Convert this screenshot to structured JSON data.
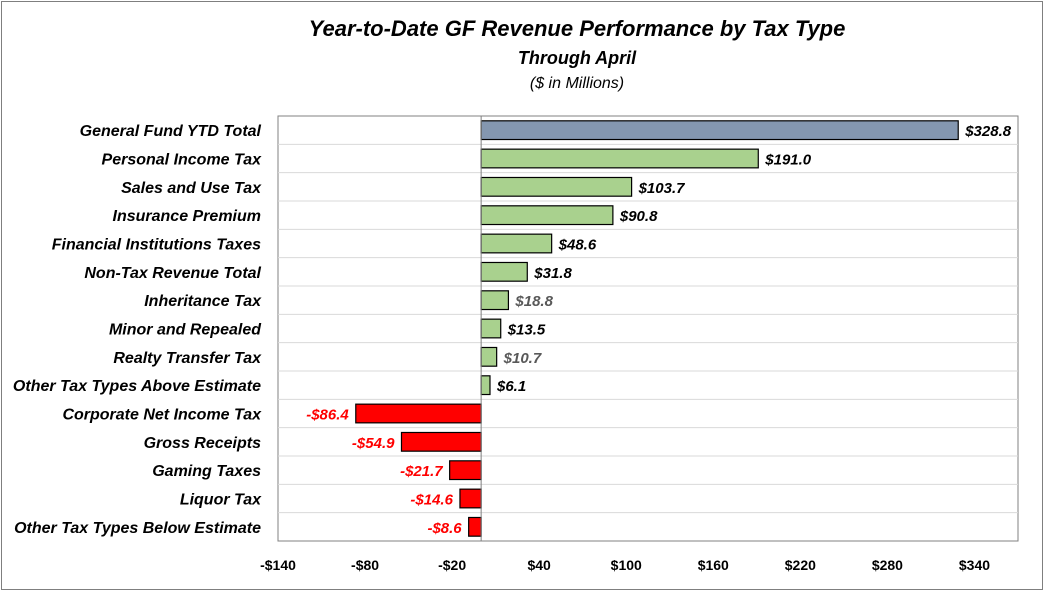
{
  "chart_data": {
    "type": "bar",
    "orientation": "horizontal",
    "title": "Year-to-Date GF Revenue Performance by Tax Type",
    "subtitle": "Through April",
    "units_note": "($ in Millions)",
    "categories": [
      "General Fund YTD Total",
      "Personal Income Tax",
      "Sales and Use Tax",
      "Insurance Premium",
      "Financial Institutions Taxes",
      "Non-Tax Revenue Total",
      "Inheritance Tax",
      "Minor and Repealed",
      "Realty Transfer Tax",
      "Other Tax Types Above Estimate",
      "Corporate Net Income Tax",
      "Gross Receipts",
      "Gaming Taxes",
      "Liquor Tax",
      "Other Tax Types Below Estimate"
    ],
    "values": [
      328.8,
      191.0,
      103.7,
      90.8,
      48.6,
      31.8,
      18.8,
      13.5,
      10.7,
      6.1,
      -86.4,
      -54.9,
      -21.7,
      -14.6,
      -8.6
    ],
    "data_labels": [
      "$328.8",
      "$191.0",
      "$103.7",
      "$90.8",
      "$48.6",
      "$31.8",
      "$18.8",
      "$13.5",
      "$10.7",
      "$6.1",
      "-$86.4",
      "-$54.9",
      "-$21.7",
      "-$14.6",
      "-$8.6"
    ],
    "label_colors": [
      "#000000",
      "#000000",
      "#000000",
      "#000000",
      "#000000",
      "#000000",
      "#595959",
      "#000000",
      "#595959",
      "#000000",
      "#ff0000",
      "#ff0000",
      "#ff0000",
      "#ff0000",
      "#ff0000"
    ],
    "bar_colors": [
      "#8497b0",
      "#a9d18e",
      "#a9d18e",
      "#a9d18e",
      "#a9d18e",
      "#a9d18e",
      "#a9d18e",
      "#a9d18e",
      "#a9d18e",
      "#a9d18e",
      "#ff0000",
      "#ff0000",
      "#ff0000",
      "#ff0000",
      "#ff0000"
    ],
    "xlim": [
      -140,
      370
    ],
    "xticks": [
      -140,
      -80,
      -20,
      40,
      100,
      160,
      220,
      280,
      340
    ],
    "xtick_labels": [
      "-$140",
      "-$80",
      "-$20",
      "$40",
      "$100",
      "$160",
      "$220",
      "$280",
      "$340"
    ],
    "grid": "horizontal row separators",
    "legend": "none"
  }
}
